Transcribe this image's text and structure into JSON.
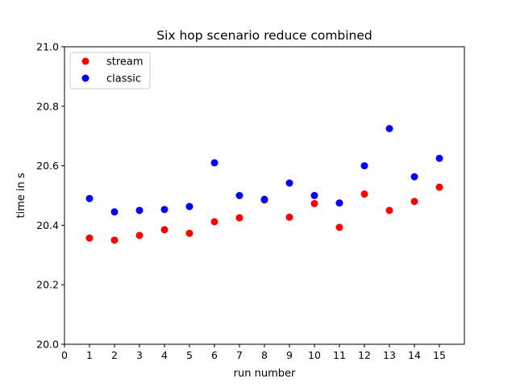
{
  "chart_data": {
    "type": "scatter",
    "title": "Six hop scenario reduce combined",
    "xlabel": "run number",
    "ylabel": "time in s",
    "xlim": [
      0,
      16
    ],
    "ylim": [
      20.0,
      21.0
    ],
    "xticks": [
      0,
      1,
      2,
      3,
      4,
      5,
      6,
      7,
      8,
      9,
      10,
      11,
      12,
      13,
      14,
      15
    ],
    "yticks": [
      20.0,
      20.2,
      20.4,
      20.6,
      20.8,
      21.0
    ],
    "ytick_labels": [
      "20.0",
      "20.2",
      "20.4",
      "20.6",
      "20.8",
      "21.0"
    ],
    "grid": false,
    "legend_position": "top-left",
    "series": [
      {
        "name": "stream",
        "color": "#ff0000",
        "x": [
          1,
          2,
          3,
          4,
          5,
          6,
          7,
          8,
          9,
          10,
          11,
          12,
          13,
          14,
          15
        ],
        "y": [
          20.357,
          20.35,
          20.366,
          20.385,
          20.373,
          20.412,
          20.425,
          20.485,
          20.427,
          20.473,
          20.393,
          20.505,
          20.45,
          20.48,
          20.528
        ]
      },
      {
        "name": "classic",
        "color": "#0000ff",
        "x": [
          1,
          2,
          3,
          4,
          5,
          6,
          7,
          8,
          9,
          10,
          11,
          12,
          13,
          14,
          15
        ],
        "y": [
          20.49,
          20.445,
          20.45,
          20.453,
          20.463,
          20.61,
          20.5,
          20.487,
          20.542,
          20.5,
          20.475,
          20.6,
          20.725,
          20.563,
          20.625
        ]
      }
    ]
  }
}
